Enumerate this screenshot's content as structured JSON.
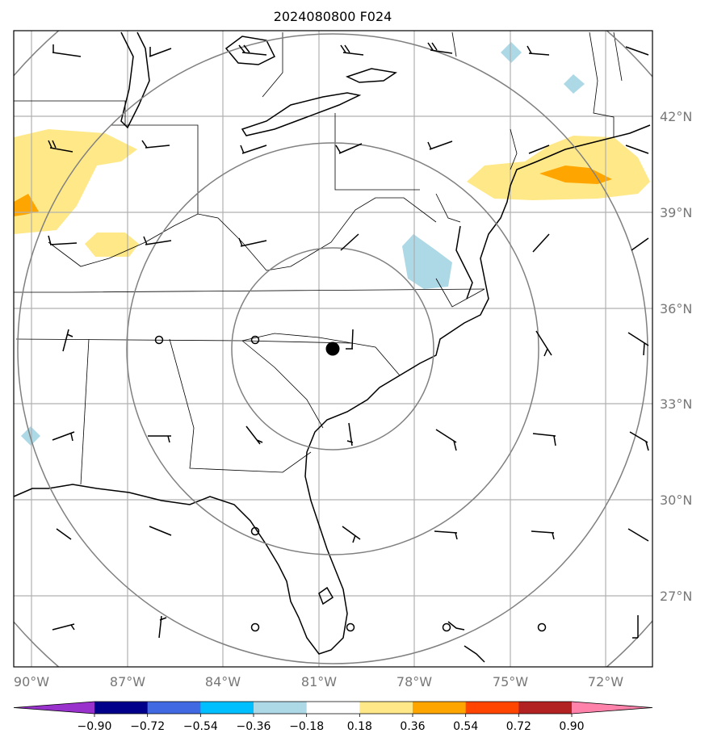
{
  "title": "2024080800 F024",
  "lat_labels": [
    "42°N",
    "39°N",
    "36°N",
    "33°N",
    "30°N",
    "27°N"
  ],
  "lon_labels": [
    "90°W",
    "87°W",
    "84°W",
    "81°W",
    "78°W",
    "75°W",
    "72°W"
  ],
  "colorbar": {
    "ticks": [
      "−0.90",
      "−0.72",
      "−0.54",
      "−0.36",
      "−0.18",
      "0.18",
      "0.36",
      "0.54",
      "0.72",
      "0.90"
    ],
    "colors": [
      "#9932cc",
      "#00008b",
      "#4169e1",
      "#00bfff",
      "#add8e6",
      "#ffffff",
      "#ffe888",
      "#ffa500",
      "#ff4500",
      "#b22222",
      "#ff82ab"
    ]
  },
  "map": {
    "center_marker": "filled-circle",
    "range_ring_color": "#808080",
    "shading_colors": {
      "light_blue": "#add8e6",
      "light_yellow": "#ffe888",
      "orange": "#ffa500"
    },
    "calm_station_icon": "open-circle",
    "wind_barb_icon": "wind-barb"
  }
}
